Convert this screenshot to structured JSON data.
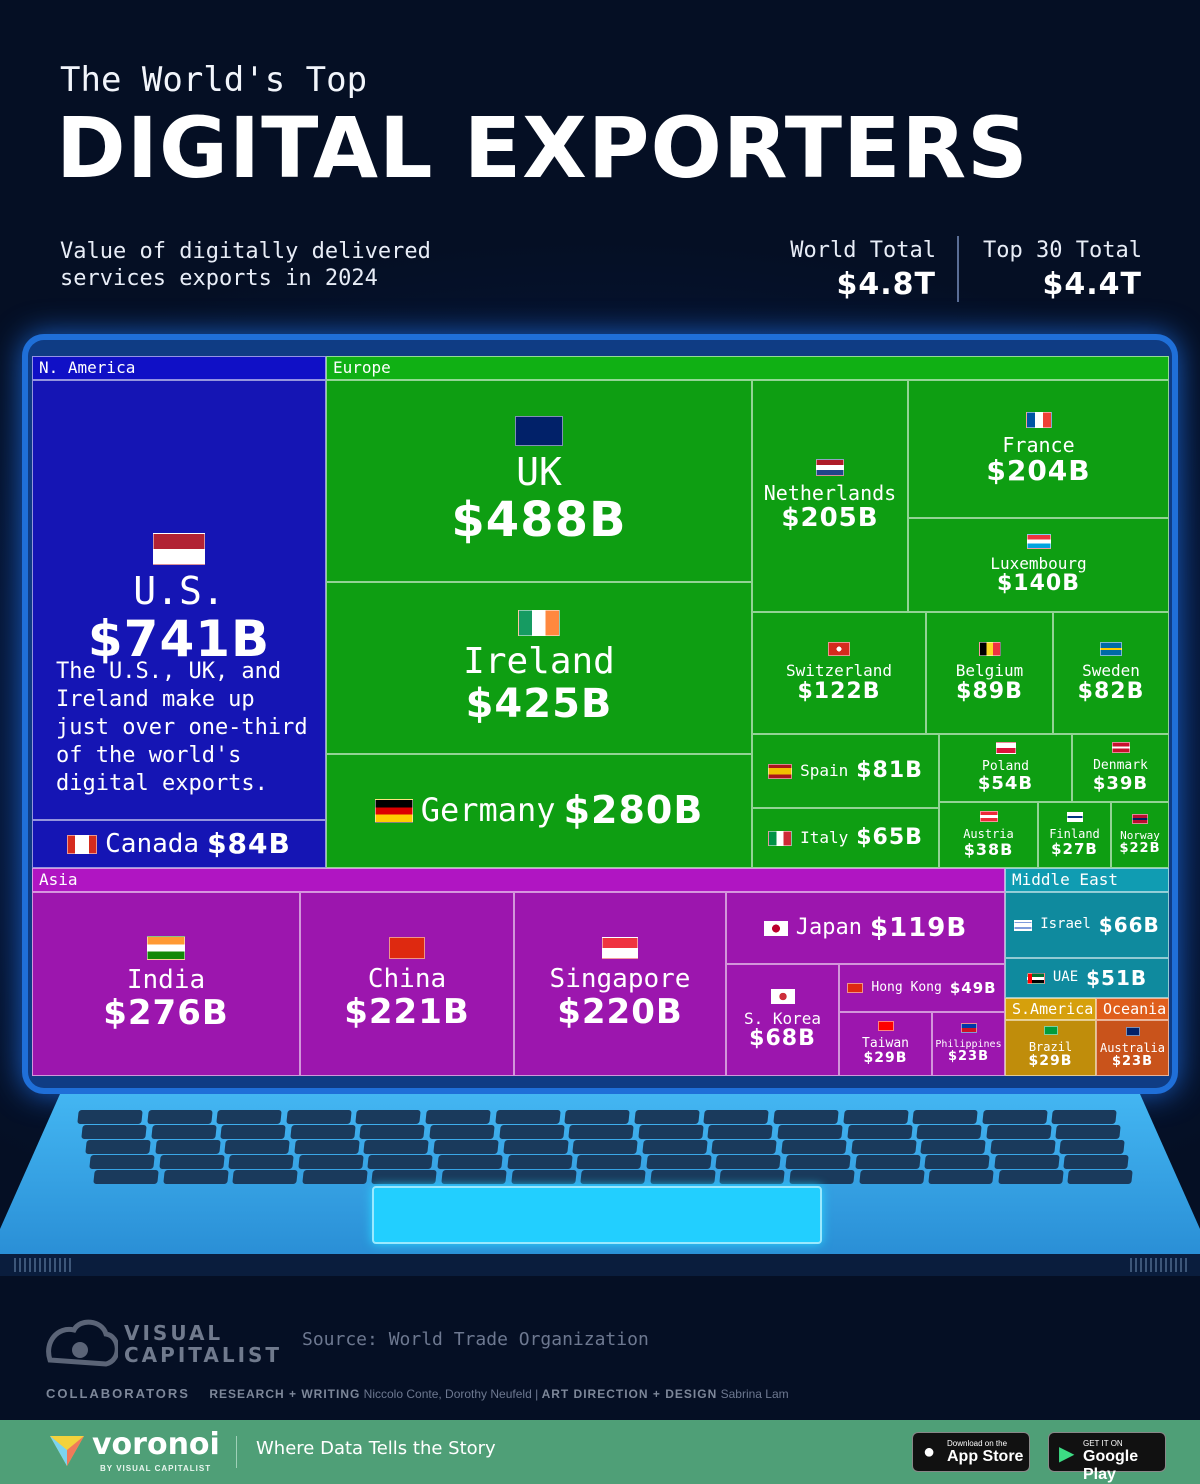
{
  "kicker": "The World's Top",
  "headline": "DIGITAL EXPORTERS",
  "subtitle": "Value of digitally delivered services exports in 2024",
  "world_total": {
    "label": "World Total",
    "value": "$4.8T"
  },
  "top30_total": {
    "label": "Top 30 Total",
    "value": "$4.4T"
  },
  "note": "The U.S., UK, and Ireland make up just over one-third of the world's digital exports.",
  "regions": [
    "N. America",
    "Europe",
    "Asia",
    "Middle East",
    "S.America",
    "Oceania"
  ],
  "chart_data": {
    "type": "treemap",
    "unit": "USD billions",
    "groups": [
      {
        "region": "N. America",
        "color": "#1010b8",
        "items": [
          {
            "name": "U.S.",
            "value": 741,
            "label": "$741B"
          },
          {
            "name": "Canada",
            "value": 84,
            "label": "$84B"
          }
        ]
      },
      {
        "region": "Europe",
        "color": "#0ea312",
        "items": [
          {
            "name": "UK",
            "value": 488,
            "label": "$488B"
          },
          {
            "name": "Ireland",
            "value": 425,
            "label": "$425B"
          },
          {
            "name": "Germany",
            "value": 280,
            "label": "$280B"
          },
          {
            "name": "Netherlands",
            "value": 205,
            "label": "$205B"
          },
          {
            "name": "France",
            "value": 204,
            "label": "$204B"
          },
          {
            "name": "Luxembourg",
            "value": 140,
            "label": "$140B"
          },
          {
            "name": "Switzerland",
            "value": 122,
            "label": "$122B"
          },
          {
            "name": "Belgium",
            "value": 89,
            "label": "$89B"
          },
          {
            "name": "Sweden",
            "value": 82,
            "label": "$82B"
          },
          {
            "name": "Spain",
            "value": 81,
            "label": "$81B"
          },
          {
            "name": "Italy",
            "value": 65,
            "label": "$65B"
          },
          {
            "name": "Poland",
            "value": 54,
            "label": "$54B"
          },
          {
            "name": "Denmark",
            "value": 39,
            "label": "$39B"
          },
          {
            "name": "Austria",
            "value": 38,
            "label": "$38B"
          },
          {
            "name": "Finland",
            "value": 27,
            "label": "$27B"
          },
          {
            "name": "Norway",
            "value": 22,
            "label": "$22B"
          }
        ]
      },
      {
        "region": "Asia",
        "color": "#a112b4",
        "items": [
          {
            "name": "India",
            "value": 276,
            "label": "$276B"
          },
          {
            "name": "China",
            "value": 221,
            "label": "$221B"
          },
          {
            "name": "Singapore",
            "value": 220,
            "label": "$220B"
          },
          {
            "name": "Japan",
            "value": 119,
            "label": "$119B"
          },
          {
            "name": "S. Korea",
            "value": 68,
            "label": "$68B"
          },
          {
            "name": "Hong Kong",
            "value": 49,
            "label": "$49B"
          },
          {
            "name": "Taiwan",
            "value": 29,
            "label": "$29B"
          },
          {
            "name": "Philippines",
            "value": 23,
            "label": "$23B"
          }
        ]
      },
      {
        "region": "Middle East",
        "color": "#0e8aa0",
        "items": [
          {
            "name": "Israel",
            "value": 66,
            "label": "$66B"
          },
          {
            "name": "UAE",
            "value": 51,
            "label": "$51B"
          }
        ]
      },
      {
        "region": "S.America",
        "color": "#c9940a",
        "items": [
          {
            "name": "Brazil",
            "value": 29,
            "label": "$29B"
          }
        ]
      },
      {
        "region": "Oceania",
        "color": "#d2561a",
        "items": [
          {
            "name": "Australia",
            "value": 23,
            "label": "$23B"
          }
        ]
      }
    ]
  },
  "source": "Source: World Trade Organization",
  "brand": {
    "line1": "VISUAL",
    "line2": "CAPITALIST"
  },
  "collaborators": {
    "label": "COLLABORATORS",
    "research_label": "RESEARCH + WRITING",
    "research_names": "Niccolo Conte, Dorothy Neufeld",
    "design_label": "ART DIRECTION + DESIGN",
    "design_names": "Sabrina Lam"
  },
  "footer": {
    "name": "voronoi",
    "by": "BY VISUAL CAPITALIST",
    "tagline": "Where Data Tells the Story",
    "appstore_small": "Download on the",
    "appstore_big": "App Store",
    "play_small": "GET IT ON",
    "play_big": "Google Play"
  }
}
